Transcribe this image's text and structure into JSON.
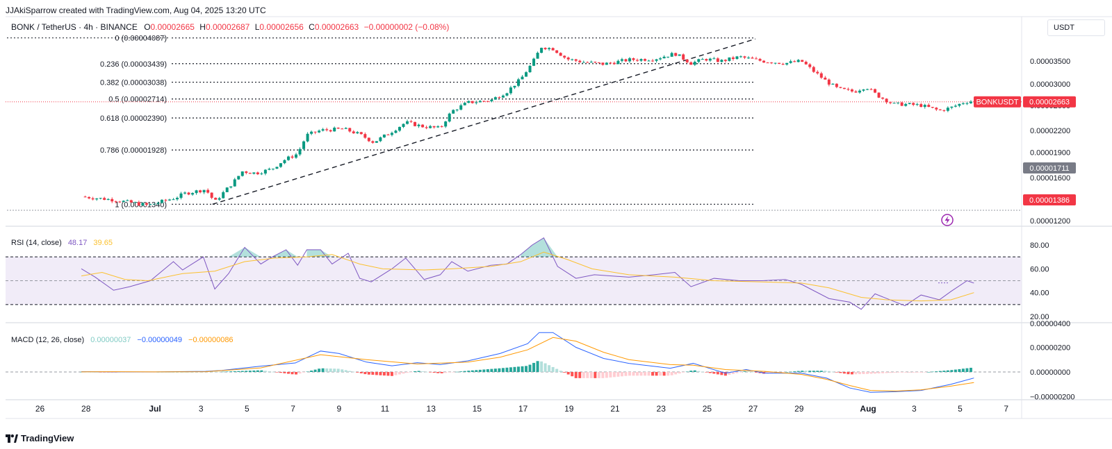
{
  "header": {
    "credit": "JJAkiSparrow created with TradingView.com, Aug 04, 2025 13:20 UTC",
    "symbol": "BONK / TetherUS · 4h · BINANCE",
    "o_label": "O",
    "o_value": "0.00002665",
    "h_label": "H",
    "h_value": "0.00002687",
    "l_label": "L",
    "l_value": "0.00002656",
    "c_label": "C",
    "c_value": "0.00002663",
    "change": "−0.00000002 (−0.08%)"
  },
  "currency": "USDT",
  "price_tag": {
    "symbol": "BONKUSDT",
    "value": "0.00002663"
  },
  "markers": {
    "grey": "0.00001711",
    "red": "0.00001386"
  },
  "rsi_legend": {
    "name": "RSI (14, close)",
    "value1": "48.17",
    "value2": "39.65"
  },
  "macd_legend": {
    "name": "MACD (12, 26, close)",
    "hist": "0.00000037",
    "macd": "−0.00000049",
    "signal": "−0.00000086"
  },
  "brand": "TradingView",
  "colors": {
    "up": "#089981",
    "down": "#f23645",
    "rsi": "#7e57c2",
    "rsi_ma": "#fbc02d",
    "macd": "#2962ff",
    "signal": "#ff9800",
    "band": "#ede7f6"
  },
  "chart_data": [
    {
      "type": "candlestick",
      "title": "BONK / TetherUS · 4h · BINANCE",
      "x_ticks": [
        "26",
        "28",
        "Jul",
        "3",
        "5",
        "7",
        "9",
        "11",
        "13",
        "15",
        "17",
        "19",
        "21",
        "23",
        "25",
        "27",
        "29",
        "Aug",
        "3",
        "5",
        "7"
      ],
      "y_ticks": [
        "0.00003500",
        "0.00003000",
        "0.00002600",
        "0.00002200",
        "0.00001900",
        "0.00001600",
        "0.00001200"
      ],
      "y_scale": "log",
      "fib_levels": [
        {
          "label": "0 (0.00004087)",
          "price": 4.087e-05
        },
        {
          "label": "0.236 (0.00003439)",
          "price": 3.439e-05
        },
        {
          "label": "0.382 (0.00003038)",
          "price": 3.038e-05
        },
        {
          "label": "0.5 (0.00002714)",
          "price": 2.714e-05
        },
        {
          "label": "0.618 (0.00002390)",
          "price": 2.39e-05
        },
        {
          "label": "0.786 (0.00001928)",
          "price": 1.928e-05
        },
        {
          "label": "1 (0.00001340)",
          "price": 1.34e-05
        }
      ],
      "trendline": [
        {
          "day": 2.5,
          "price": 1.34e-05
        },
        {
          "day": 26.1,
          "price": 4.06e-05
        }
      ],
      "close_path": [
        [
          -3.2,
          1.41e-05
        ],
        [
          -1.8,
          1.38e-05
        ],
        [
          -0.3,
          1.33e-05
        ],
        [
          0.9,
          1.4e-05
        ],
        [
          1.3,
          1.44e-05
        ],
        [
          2.2,
          1.48e-05
        ],
        [
          2.6,
          1.36e-05
        ],
        [
          3.4,
          1.55e-05
        ],
        [
          3.8,
          1.67e-05
        ],
        [
          4.4,
          1.65e-05
        ],
        [
          5.1,
          1.7e-05
        ],
        [
          5.6,
          1.8e-05
        ],
        [
          6.2,
          1.88e-05
        ],
        [
          6.6,
          2.13e-05
        ],
        [
          7.2,
          2.2e-05
        ],
        [
          8.2,
          2.22e-05
        ],
        [
          8.9,
          2.14e-05
        ],
        [
          9.5,
          2.03e-05
        ],
        [
          10.2,
          2.16e-05
        ],
        [
          10.9,
          2.32e-05
        ],
        [
          11.6,
          2.26e-05
        ],
        [
          12.4,
          2.23e-05
        ],
        [
          12.9,
          2.5e-05
        ],
        [
          13.6,
          2.65e-05
        ],
        [
          14.6,
          2.69e-05
        ],
        [
          15.3,
          2.85e-05
        ],
        [
          15.9,
          3.1e-05
        ],
        [
          16.4,
          3.45e-05
        ],
        [
          16.8,
          3.85e-05
        ],
        [
          17.3,
          3.8e-05
        ],
        [
          17.9,
          3.55e-05
        ],
        [
          18.6,
          3.48e-05
        ],
        [
          19.5,
          3.43e-05
        ],
        [
          20.6,
          3.53e-05
        ],
        [
          21.7,
          3.55e-05
        ],
        [
          22.6,
          3.68e-05
        ],
        [
          23.3,
          3.45e-05
        ],
        [
          23.9,
          3.55e-05
        ],
        [
          24.6,
          3.5e-05
        ],
        [
          25.4,
          3.6e-05
        ],
        [
          26.4,
          3.5e-05
        ],
        [
          27.4,
          3.45e-05
        ],
        [
          28.1,
          3.5e-05
        ],
        [
          28.6,
          3.28e-05
        ],
        [
          29.2,
          3.05e-05
        ],
        [
          29.7,
          2.9e-05
        ],
        [
          30.4,
          2.85e-05
        ],
        [
          30.9,
          2.95e-05
        ],
        [
          31.4,
          2.78e-05
        ],
        [
          32.1,
          2.62e-05
        ],
        [
          32.6,
          2.62e-05
        ],
        [
          33.3,
          2.6e-05
        ],
        [
          34.1,
          2.51e-05
        ],
        [
          34.6,
          2.56e-05
        ],
        [
          35.2,
          2.66e-05
        ],
        [
          35.6,
          2.68e-05
        ]
      ]
    },
    {
      "type": "line",
      "title": "RSI (14, close)",
      "y_ticks": [
        "80.00",
        "60.00",
        "40.00",
        "20.00"
      ],
      "bands": [
        70,
        50,
        30
      ],
      "rsi_path": [
        [
          -3.2,
          60
        ],
        [
          -2.6,
          53
        ],
        [
          -1.8,
          42
        ],
        [
          -1.1,
          45
        ],
        [
          -0.2,
          50
        ],
        [
          0.8,
          66
        ],
        [
          1.2,
          59
        ],
        [
          2.1,
          70
        ],
        [
          2.6,
          43
        ],
        [
          3.2,
          56
        ],
        [
          3.9,
          78
        ],
        [
          4.6,
          64
        ],
        [
          5.1,
          70
        ],
        [
          5.7,
          76
        ],
        [
          6.2,
          63
        ],
        [
          6.6,
          76
        ],
        [
          7.2,
          76
        ],
        [
          7.7,
          64
        ],
        [
          8.4,
          73
        ],
        [
          8.9,
          52
        ],
        [
          9.4,
          49
        ],
        [
          10.3,
          60
        ],
        [
          10.9,
          69
        ],
        [
          11.7,
          51
        ],
        [
          12.4,
          55
        ],
        [
          12.9,
          66
        ],
        [
          13.6,
          58
        ],
        [
          14.6,
          63
        ],
        [
          15.3,
          64
        ],
        [
          15.9,
          72
        ],
        [
          16.4,
          80
        ],
        [
          16.9,
          86
        ],
        [
          17.5,
          62
        ],
        [
          18.3,
          52
        ],
        [
          19.1,
          55
        ],
        [
          20.6,
          53
        ],
        [
          21.7,
          55
        ],
        [
          22.6,
          57
        ],
        [
          23.3,
          45
        ],
        [
          24.3,
          52
        ],
        [
          25.4,
          50
        ],
        [
          26.4,
          50
        ],
        [
          27.4,
          51
        ],
        [
          28.1,
          47
        ],
        [
          29.3,
          35
        ],
        [
          30.2,
          32
        ],
        [
          30.7,
          26
        ],
        [
          31.3,
          39
        ],
        [
          32.6,
          29
        ],
        [
          33.3,
          38
        ],
        [
          34.1,
          34
        ],
        [
          34.6,
          41
        ],
        [
          35.3,
          50
        ],
        [
          35.6,
          48
        ]
      ],
      "ma_path": [
        [
          -3.2,
          54
        ],
        [
          -2.3,
          57
        ],
        [
          -1.3,
          51
        ],
        [
          -0.3,
          50
        ],
        [
          1.2,
          56
        ],
        [
          2.6,
          58
        ],
        [
          3.9,
          66
        ],
        [
          5.2,
          69
        ],
        [
          6.6,
          70
        ],
        [
          7.7,
          72
        ],
        [
          8.9,
          64
        ],
        [
          9.9,
          60
        ],
        [
          11.7,
          59
        ],
        [
          12.9,
          60
        ],
        [
          14.6,
          62
        ],
        [
          15.9,
          66
        ],
        [
          16.9,
          74
        ],
        [
          17.9,
          68
        ],
        [
          19.0,
          60
        ],
        [
          20.6,
          55
        ],
        [
          22.6,
          53
        ],
        [
          24.3,
          50
        ],
        [
          26.4,
          49
        ],
        [
          28.1,
          48
        ],
        [
          29.3,
          44
        ],
        [
          30.7,
          36
        ],
        [
          31.8,
          34
        ],
        [
          33.3,
          33
        ],
        [
          34.6,
          34
        ],
        [
          35.6,
          40
        ]
      ]
    },
    {
      "type": "line",
      "title": "MACD (12, 26, close)",
      "y_ticks": [
        "0.00000200",
        "0.00000000",
        "−0.00000200"
      ],
      "macd_path": [
        [
          -3.2,
          2e-08
        ],
        [
          -1.8,
          1e-08
        ],
        [
          0.0,
          1e-08
        ],
        [
          2.2,
          5e-08
        ],
        [
          2.9,
          1.3e-07
        ],
        [
          4.6,
          4.7e-07
        ],
        [
          6.1,
          7.3e-07
        ],
        [
          7.2,
          1.7e-06
        ],
        [
          8.0,
          1.5e-06
        ],
        [
          9.2,
          8e-07
        ],
        [
          10.3,
          5e-07
        ],
        [
          11.4,
          7.5e-07
        ],
        [
          12.4,
          6e-07
        ],
        [
          13.6,
          9e-07
        ],
        [
          15.0,
          1.5e-06
        ],
        [
          16.2,
          2.3e-06
        ],
        [
          16.7,
          3.2e-06
        ],
        [
          17.3,
          3.2e-06
        ],
        [
          18.3,
          2e-06
        ],
        [
          19.5,
          1.1e-06
        ],
        [
          20.6,
          7e-07
        ],
        [
          22.4,
          3e-07
        ],
        [
          23.4,
          7e-07
        ],
        [
          24.8,
          -1e-07
        ],
        [
          25.7,
          2e-07
        ],
        [
          26.5,
          -1e-07
        ],
        [
          28.1,
          -1e-07
        ],
        [
          29.2,
          -5e-07
        ],
        [
          30.2,
          -1.3e-06
        ],
        [
          31.1,
          -1.65e-06
        ],
        [
          32.2,
          -1.6e-06
        ],
        [
          33.3,
          -1.5e-06
        ],
        [
          34.6,
          -1e-06
        ],
        [
          35.6,
          -4.9e-07
        ]
      ],
      "signal_path": [
        [
          -3.2,
          1e-08
        ],
        [
          -1.8,
          2e-08
        ],
        [
          0.0,
          1e-08
        ],
        [
          2.2,
          2e-08
        ],
        [
          4.6,
          3.3e-07
        ],
        [
          7.2,
          1.4e-06
        ],
        [
          9.2,
          1e-06
        ],
        [
          11.4,
          6.5e-07
        ],
        [
          13.6,
          8e-07
        ],
        [
          15.0,
          1.2e-06
        ],
        [
          16.2,
          1.8e-06
        ],
        [
          17.3,
          2.8e-06
        ],
        [
          18.3,
          2.5e-06
        ],
        [
          19.5,
          1.6e-06
        ],
        [
          20.6,
          1e-06
        ],
        [
          22.4,
          6e-07
        ],
        [
          23.4,
          5.5e-07
        ],
        [
          24.8,
          2e-07
        ],
        [
          26.5,
          5e-08
        ],
        [
          28.1,
          -2e-07
        ],
        [
          29.2,
          -6e-07
        ],
        [
          30.2,
          -1.1e-06
        ],
        [
          31.1,
          -1.5e-06
        ],
        [
          32.2,
          -1.55e-06
        ],
        [
          33.3,
          -1.45e-06
        ],
        [
          34.6,
          -1.15e-06
        ],
        [
          35.6,
          -8.6e-07
        ]
      ]
    }
  ]
}
